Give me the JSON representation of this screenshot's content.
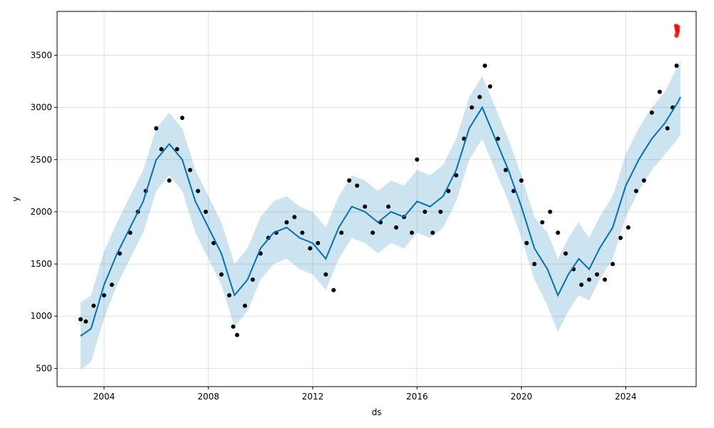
{
  "chart_data": {
    "type": "line",
    "title": "",
    "xlabel": "ds",
    "ylabel": "y",
    "xlim": [
      2002.2,
      2026.7
    ],
    "ylim": [
      325,
      3920
    ],
    "grid": true,
    "x_ticks": [
      {
        "value": 2004,
        "label": "2004"
      },
      {
        "value": 2008,
        "label": "2008"
      },
      {
        "value": 2012,
        "label": "2012"
      },
      {
        "value": 2016,
        "label": "2016"
      },
      {
        "value": 2020,
        "label": "2020"
      },
      {
        "value": 2024,
        "label": "2024"
      }
    ],
    "y_ticks": [
      {
        "value": 500,
        "label": "500"
      },
      {
        "value": 1000,
        "label": "1000"
      },
      {
        "value": 1500,
        "label": "1500"
      },
      {
        "value": 2000,
        "label": "2000"
      },
      {
        "value": 2500,
        "label": "2500"
      },
      {
        "value": 3000,
        "label": "3000"
      },
      {
        "value": 3500,
        "label": "3500"
      }
    ],
    "colors": {
      "observed": "#000000",
      "forecast_line": "#0072B2",
      "uncertainty": "#0072B2",
      "highlight": "#ff0000",
      "grid": "#e0e0e0"
    },
    "forecast": {
      "x": [
        2003.1,
        2003.5,
        2004.0,
        2004.5,
        2005.0,
        2005.5,
        2006.0,
        2006.5,
        2007.0,
        2007.5,
        2008.0,
        2008.5,
        2009.0,
        2009.5,
        2010.0,
        2010.5,
        2011.0,
        2011.5,
        2012.0,
        2012.5,
        2013.0,
        2013.5,
        2014.0,
        2014.5,
        2015.0,
        2015.5,
        2016.0,
        2016.5,
        2017.0,
        2017.5,
        2018.0,
        2018.5,
        2019.0,
        2019.5,
        2020.0,
        2020.5,
        2021.0,
        2021.4,
        2021.8,
        2022.2,
        2022.6,
        2023.0,
        2023.5,
        2024.0,
        2024.5,
        2025.0,
        2025.5,
        2026.0,
        2026.1
      ],
      "yhat": [
        810,
        880,
        1300,
        1600,
        1850,
        2100,
        2500,
        2650,
        2500,
        2100,
        1850,
        1600,
        1200,
        1350,
        1650,
        1800,
        1850,
        1750,
        1700,
        1550,
        1850,
        2050,
        2000,
        1900,
        2000,
        1950,
        2100,
        2050,
        2150,
        2400,
        2800,
        3000,
        2700,
        2400,
        2050,
        1650,
        1450,
        1200,
        1400,
        1550,
        1450,
        1650,
        1850,
        2250,
        2500,
        2700,
        2850,
        3050,
        3100
      ],
      "lower": [
        490,
        560,
        980,
        1300,
        1550,
        1800,
        2200,
        2350,
        2200,
        1800,
        1550,
        1300,
        900,
        1050,
        1350,
        1500,
        1550,
        1450,
        1400,
        1250,
        1550,
        1750,
        1700,
        1600,
        1700,
        1650,
        1800,
        1750,
        1850,
        2100,
        2500,
        2700,
        2400,
        2100,
        1750,
        1350,
        1100,
        850,
        1050,
        1200,
        1150,
        1350,
        1550,
        1950,
        2200,
        2400,
        2550,
        2700,
        2750
      ],
      "upper": [
        1130,
        1200,
        1620,
        1900,
        2150,
        2400,
        2800,
        2950,
        2800,
        2400,
        2150,
        1900,
        1500,
        1650,
        1950,
        2100,
        2150,
        2050,
        2000,
        1850,
        2150,
        2350,
        2300,
        2200,
        2300,
        2250,
        2400,
        2350,
        2450,
        2700,
        3100,
        3300,
        3000,
        2700,
        2350,
        1950,
        1800,
        1550,
        1750,
        1900,
        1750,
        1950,
        2150,
        2550,
        2800,
        3000,
        3150,
        3400,
        3450
      ]
    },
    "observed": {
      "x": [
        2003.1,
        2003.3,
        2003.6,
        2004.0,
        2004.3,
        2004.6,
        2005.0,
        2005.3,
        2005.6,
        2006.0,
        2006.2,
        2006.5,
        2006.8,
        2007.0,
        2007.3,
        2007.6,
        2007.9,
        2008.2,
        2008.5,
        2008.8,
        2008.95,
        2009.1,
        2009.4,
        2009.7,
        2010.0,
        2010.3,
        2010.6,
        2011.0,
        2011.3,
        2011.6,
        2011.9,
        2012.2,
        2012.5,
        2012.8,
        2013.1,
        2013.4,
        2013.7,
        2014.0,
        2014.3,
        2014.6,
        2014.9,
        2015.2,
        2015.5,
        2015.8,
        2016.0,
        2016.3,
        2016.6,
        2016.9,
        2017.2,
        2017.5,
        2017.8,
        2018.1,
        2018.4,
        2018.6,
        2018.8,
        2019.1,
        2019.4,
        2019.7,
        2020.0,
        2020.2,
        2020.5,
        2020.8,
        2021.1,
        2021.4,
        2021.7,
        2022.0,
        2022.3,
        2022.6,
        2022.9,
        2023.2,
        2023.5,
        2023.8,
        2024.1,
        2024.4,
        2024.7,
        2025.0,
        2025.3,
        2025.6,
        2025.8,
        2025.95
      ],
      "y": [
        970,
        950,
        1100,
        1200,
        1300,
        1600,
        1800,
        2000,
        2200,
        2800,
        2600,
        2300,
        2600,
        2900,
        2400,
        2200,
        2000,
        1700,
        1400,
        1200,
        900,
        820,
        1100,
        1350,
        1600,
        1750,
        1800,
        1900,
        1950,
        1800,
        1650,
        1700,
        1400,
        1250,
        1800,
        2300,
        2250,
        2050,
        1800,
        1900,
        2050,
        1850,
        1950,
        1800,
        2500,
        2000,
        1800,
        2000,
        2200,
        2350,
        2700,
        3000,
        3100,
        3400,
        3200,
        2700,
        2400,
        2200,
        2300,
        1700,
        1500,
        1900,
        2000,
        1800,
        1600,
        1450,
        1300,
        1350,
        1400,
        1350,
        1500,
        1750,
        1850,
        2200,
        2300,
        2950,
        3150,
        2800,
        3000,
        3400
      ]
    },
    "highlight": {
      "x": [
        2025.93,
        2025.96,
        2025.98,
        2026.0,
        2025.95,
        2025.99
      ],
      "y": [
        3780,
        3750,
        3720,
        3770,
        3690,
        3740
      ]
    }
  }
}
